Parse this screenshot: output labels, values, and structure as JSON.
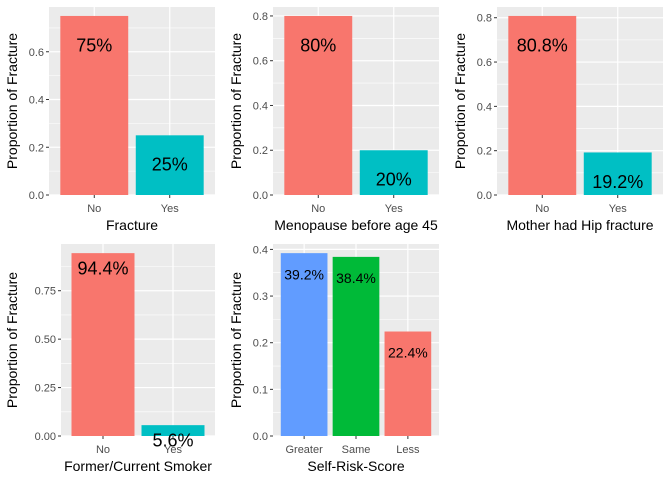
{
  "panel_bg": "#ebebeb",
  "grid_color": "#ffffff",
  "tick_text_color": "#4d4d4d",
  "axis_title_color": "#000000",
  "chart_data": [
    {
      "type": "bar",
      "xlabel": "Fracture",
      "ylabel": "Proportion of Fracture",
      "categories": [
        "No",
        "Yes"
      ],
      "values": [
        0.75,
        0.25
      ],
      "labels": [
        "75%",
        "25%"
      ],
      "colors": [
        "#f8766d",
        "#00bfc4"
      ],
      "ylim": [
        0,
        0.7875
      ],
      "yticks": [
        0.0,
        0.2,
        0.4,
        0.6
      ],
      "ytick_labels": [
        "0.0",
        "0.2",
        "0.4",
        "0.6"
      ],
      "grid": true
    },
    {
      "type": "bar",
      "xlabel": "Menopause before age 45",
      "ylabel": "Proportion of Fracture",
      "categories": [
        "No",
        "Yes"
      ],
      "values": [
        0.8,
        0.2
      ],
      "labels": [
        "80%",
        "20%"
      ],
      "colors": [
        "#f8766d",
        "#00bfc4"
      ],
      "ylim": [
        0,
        0.84
      ],
      "yticks": [
        0.0,
        0.2,
        0.4,
        0.6,
        0.8
      ],
      "ytick_labels": [
        "0.0",
        "0.2",
        "0.4",
        "0.6",
        "0.8"
      ],
      "grid": true
    },
    {
      "type": "bar",
      "xlabel": "Mother had Hip fracture",
      "ylabel": "Proportion of Fracture",
      "categories": [
        "No",
        "Yes"
      ],
      "values": [
        0.808,
        0.192
      ],
      "labels": [
        "80.8%",
        "19.2%"
      ],
      "colors": [
        "#f8766d",
        "#00bfc4"
      ],
      "ylim": [
        0,
        0.8484
      ],
      "yticks": [
        0.0,
        0.2,
        0.4,
        0.6,
        0.8
      ],
      "ytick_labels": [
        "0.0",
        "0.2",
        "0.4",
        "0.6",
        "0.8"
      ],
      "grid": true
    },
    {
      "type": "bar",
      "xlabel": "Former/Current Smoker",
      "ylabel": "Proportion of Fracture",
      "categories": [
        "No",
        "Yes"
      ],
      "values": [
        0.944,
        0.056
      ],
      "labels": [
        "94.4%",
        "5.6%"
      ],
      "colors": [
        "#f8766d",
        "#00bfc4"
      ],
      "ylim": [
        0,
        0.9912
      ],
      "yticks": [
        0.0,
        0.25,
        0.5,
        0.75
      ],
      "ytick_labels": [
        "0.00",
        "0.25",
        "0.50",
        "0.75"
      ],
      "grid": true
    },
    {
      "type": "bar",
      "xlabel": "Self-Risk-Score",
      "ylabel": "Proportion of Fracture",
      "categories": [
        "Greater",
        "Same",
        "Less"
      ],
      "values": [
        0.392,
        0.384,
        0.224
      ],
      "labels": [
        "39.2%",
        "38.4%",
        "22.4%"
      ],
      "colors": [
        "#619cff",
        "#00ba38",
        "#f8766d"
      ],
      "ylim": [
        0,
        0.4116
      ],
      "yticks": [
        0.0,
        0.1,
        0.2,
        0.3,
        0.4
      ],
      "ytick_labels": [
        "0.0",
        "0.1",
        "0.2",
        "0.3",
        "0.4"
      ],
      "grid": true
    }
  ]
}
